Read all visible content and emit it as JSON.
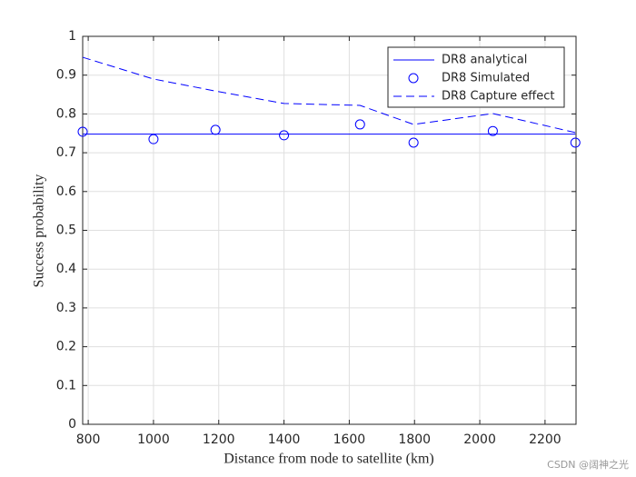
{
  "chart_data": {
    "type": "line",
    "x_label": "Distance from node to satellite (km)",
    "y_label": "Success probability",
    "x": [
      783,
      1000,
      1190,
      1400,
      1633,
      1797,
      2040,
      2293
    ],
    "series": [
      {
        "name": "DR8 analytical",
        "color": "#0000ff",
        "linestyle": "solid",
        "marker": "none",
        "values": [
          0.748,
          0.748,
          0.748,
          0.748,
          0.748,
          0.748,
          0.748,
          0.748
        ]
      },
      {
        "name": "DR8 Simulated",
        "color": "#0000ff",
        "linestyle": "none",
        "marker": "circle",
        "values": [
          0.754,
          0.735,
          0.759,
          0.745,
          0.773,
          0.726,
          0.756,
          0.726
        ]
      },
      {
        "name": "DR8 Capture effect",
        "color": "#0000ff",
        "linestyle": "dashed",
        "marker": "none",
        "values": [
          0.946,
          0.89,
          0.859,
          0.827,
          0.822,
          0.773,
          0.801,
          0.752
        ]
      }
    ],
    "xlim": [
      783,
      2295
    ],
    "ylim": [
      0,
      1
    ],
    "xticks": [
      800,
      1000,
      1200,
      1400,
      1600,
      1800,
      2000,
      2200
    ],
    "yticks": [
      0,
      0.1,
      0.2,
      0.3,
      0.4,
      0.5,
      0.6,
      0.7,
      0.8,
      0.9,
      1
    ],
    "grid": true,
    "legend_position": "northeast"
  },
  "watermark": "CSDN @阔神之光"
}
